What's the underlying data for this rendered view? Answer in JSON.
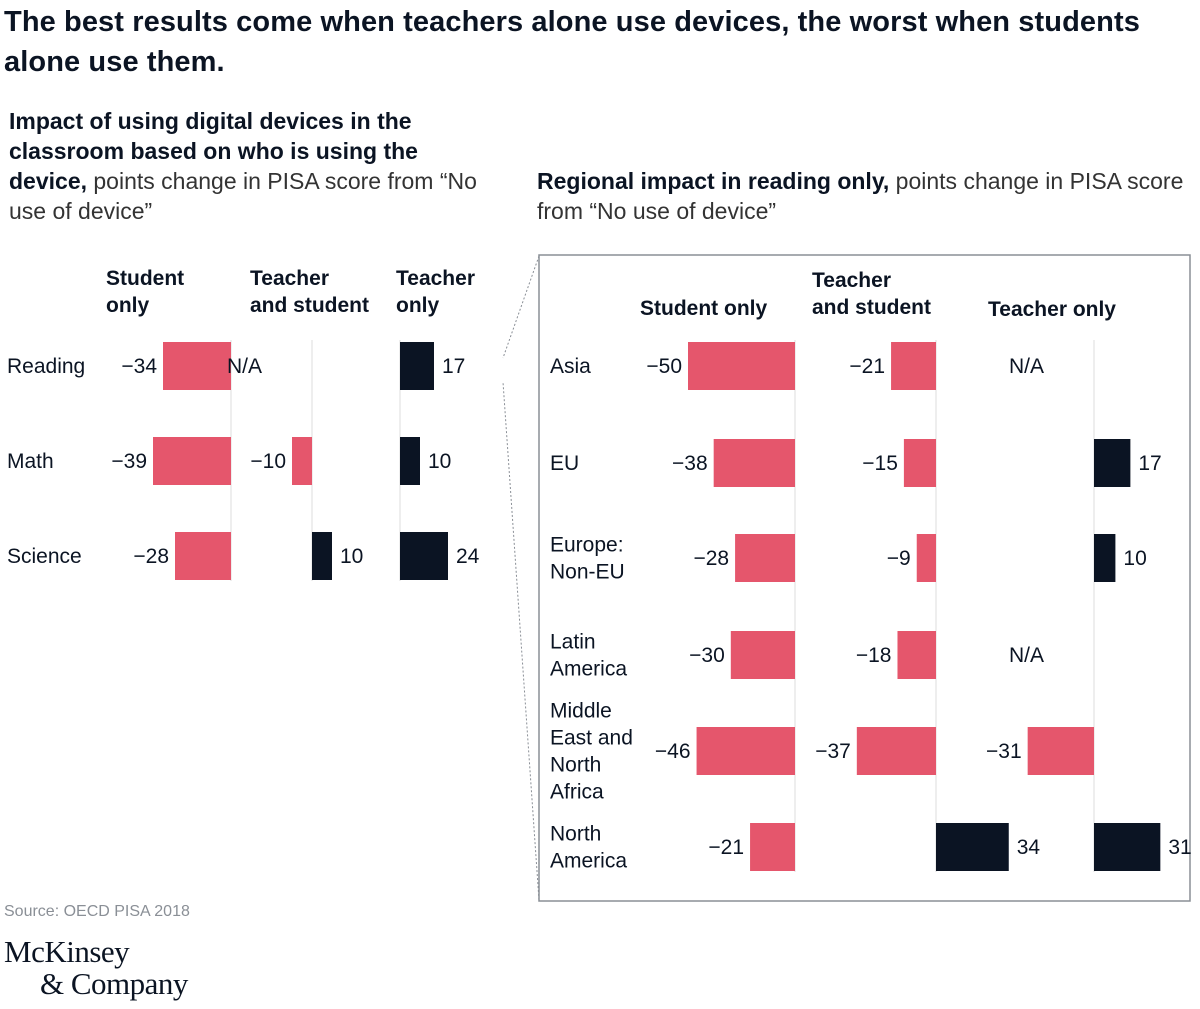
{
  "title": "The best results come when teachers alone use devices, the worst when students alone use them.",
  "subtitle_left": {
    "bold": "Impact of using digital devices in the classroom based on who is using the device,",
    "rest": " points change in PISA score from “No use of device”"
  },
  "subtitle_right": {
    "bold": "Regional impact in reading only,",
    "rest": " points change in PISA score from “No use of device”"
  },
  "source": "Source: OECD PISA 2018",
  "logo": {
    "line1": "McKinsey",
    "line2": "& Company"
  },
  "colors": {
    "negative": "#e5566c",
    "positive": "#0b1423",
    "axis": "#dddddd",
    "frame": "#8a8f96"
  },
  "chart_data": [
    {
      "type": "bar",
      "orientation": "horizontal",
      "title": "Impact of using digital devices in the classroom based on who is using the device",
      "categories": [
        "Reading",
        "Math",
        "Science"
      ],
      "series": [
        {
          "name": "Student only",
          "values": [
            -34,
            -39,
            -28
          ]
        },
        {
          "name": "Teacher and student",
          "values": [
            null,
            -10,
            10
          ]
        },
        {
          "name": "Teacher only",
          "values": [
            17,
            10,
            24
          ]
        }
      ],
      "na_label": "N/A"
    },
    {
      "type": "bar",
      "orientation": "horizontal",
      "title": "Regional impact in reading only",
      "categories": [
        "Asia",
        "EU",
        "Europe: Non-EU",
        "Latin America",
        "Middle East and North Africa",
        "North America"
      ],
      "category_lines": [
        [
          "Asia"
        ],
        [
          "EU"
        ],
        [
          "Europe:",
          "Non-EU"
        ],
        [
          "Latin",
          "America"
        ],
        [
          "Middle",
          "East and",
          "North",
          "Africa"
        ],
        [
          "North",
          "America"
        ]
      ],
      "series": [
        {
          "name": "Student only",
          "values": [
            -50,
            -38,
            -28,
            -30,
            -46,
            -21
          ]
        },
        {
          "name": "Teacher and student",
          "values": [
            -21,
            -15,
            -9,
            -18,
            -37,
            34
          ]
        },
        {
          "name": "Teacher only",
          "values": [
            null,
            17,
            10,
            null,
            -31,
            31
          ]
        }
      ],
      "na_label": "N/A"
    }
  ]
}
